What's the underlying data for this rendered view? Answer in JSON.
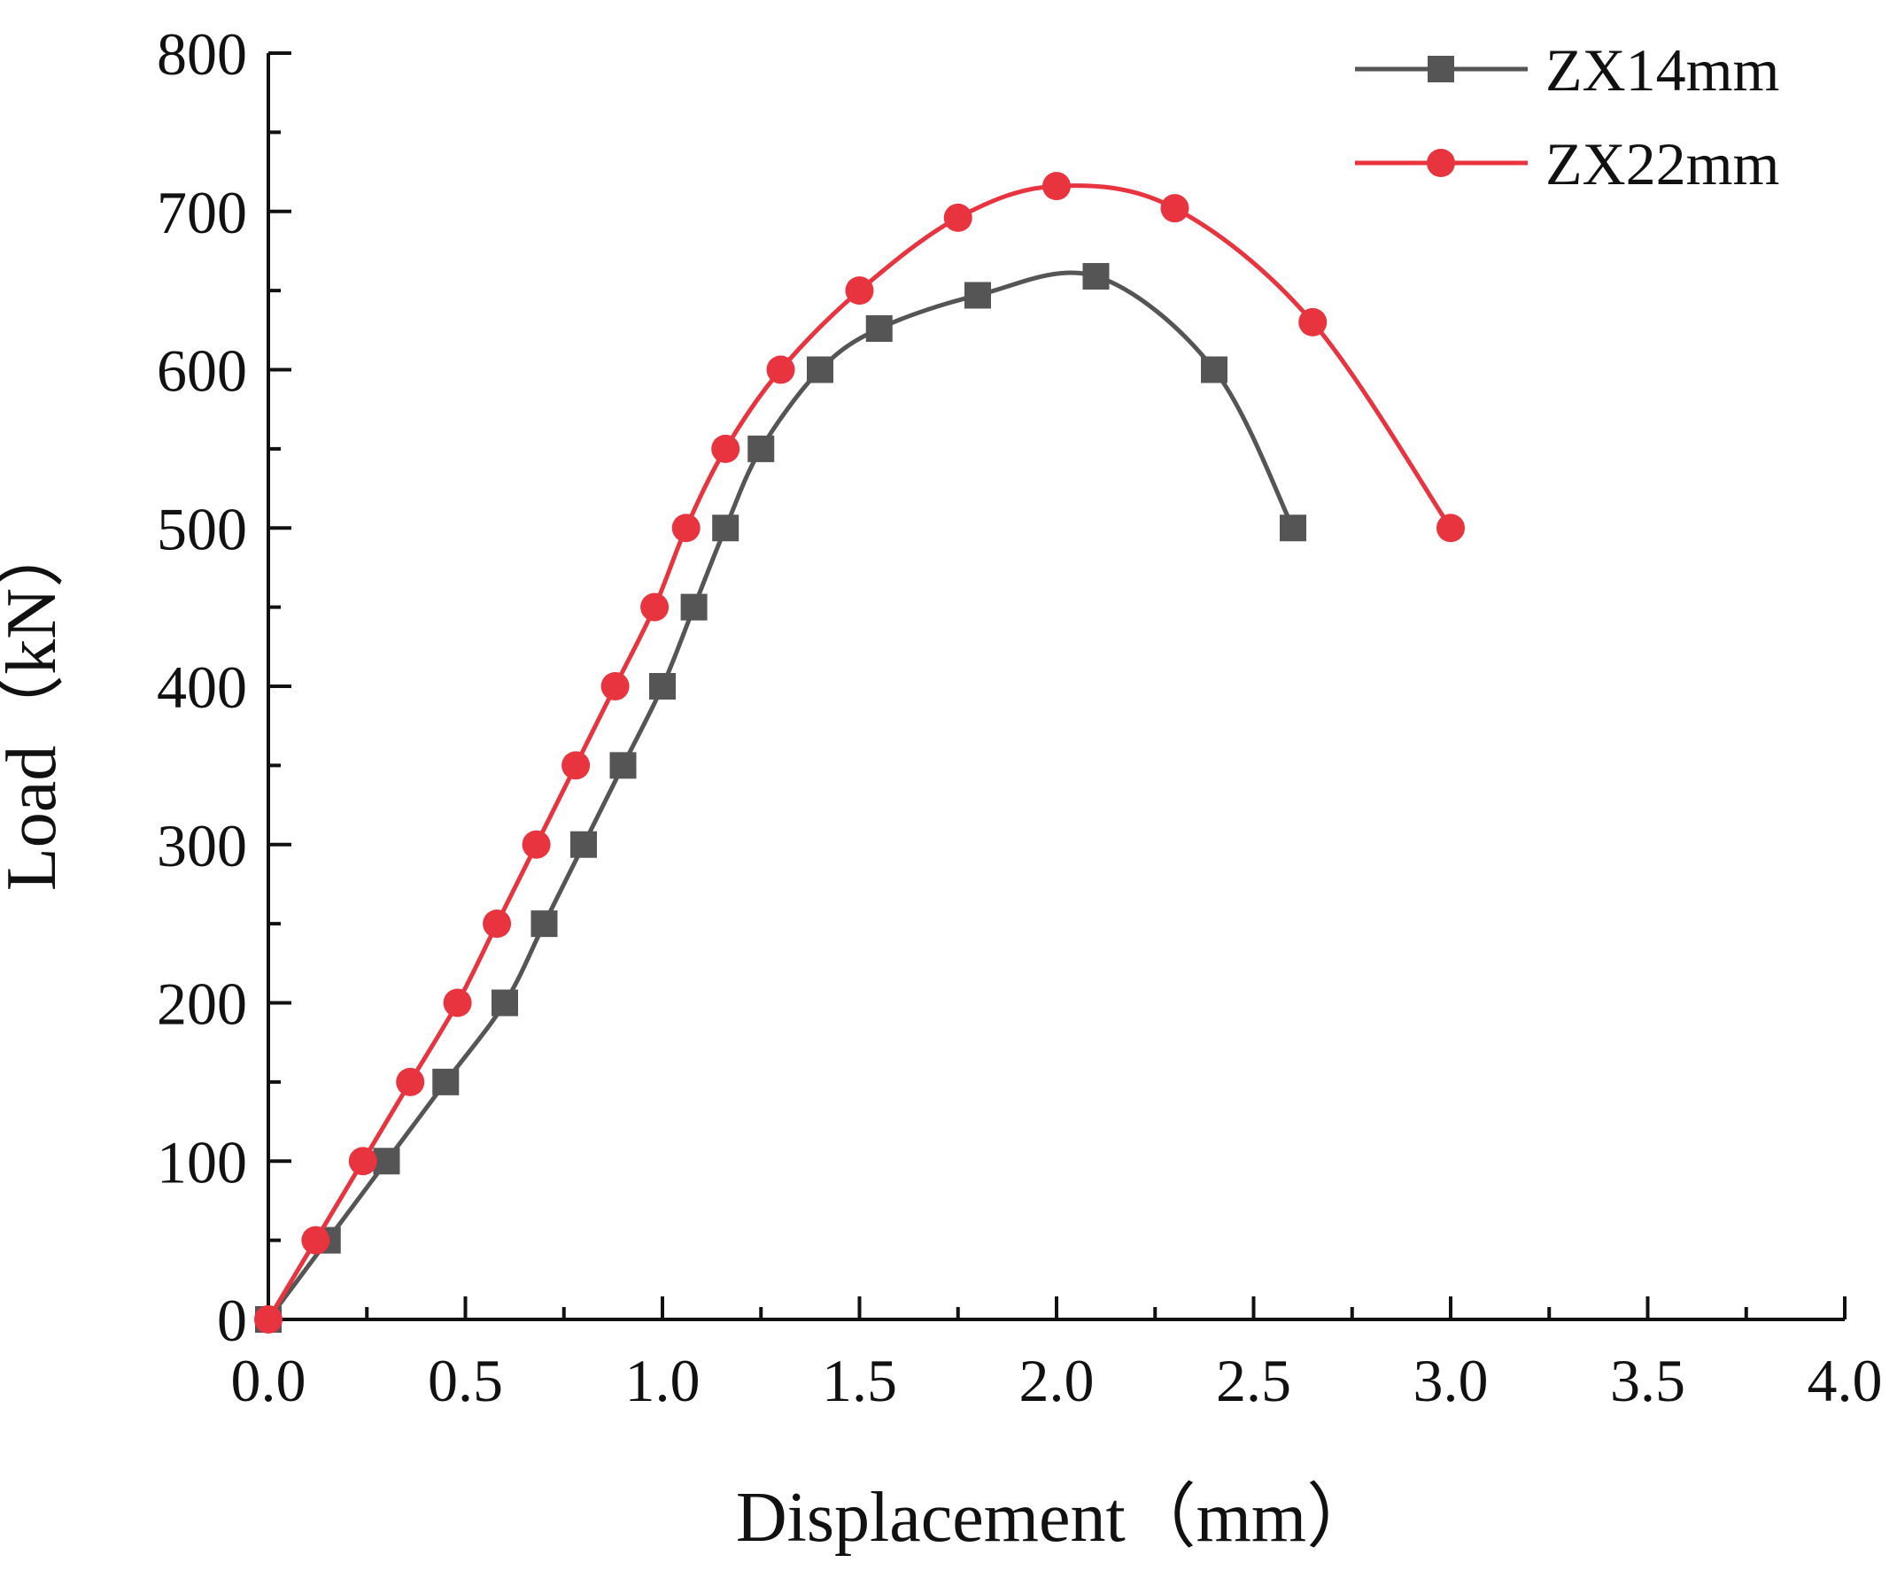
{
  "chart_data": {
    "type": "line",
    "title": "",
    "xlabel": "Displacement（mm）",
    "ylabel": "Load（kN）",
    "xlim": [
      0,
      4.0
    ],
    "ylim": [
      0,
      800
    ],
    "x_ticks": [
      "0.0",
      "0.5",
      "1.0",
      "1.5",
      "2.0",
      "2.5",
      "3.0",
      "3.5",
      "4.0"
    ],
    "y_ticks": [
      "0",
      "100",
      "200",
      "300",
      "400",
      "500",
      "600",
      "700",
      "800"
    ],
    "legend_position": "top-right",
    "grid": false,
    "series": [
      {
        "name": "ZX14mm",
        "color": "#555555",
        "marker": "square",
        "points": [
          [
            0.0,
            0
          ],
          [
            0.15,
            50
          ],
          [
            0.3,
            100
          ],
          [
            0.45,
            150
          ],
          [
            0.6,
            200
          ],
          [
            0.7,
            250
          ],
          [
            0.8,
            300
          ],
          [
            0.9,
            350
          ],
          [
            1.0,
            400
          ],
          [
            1.08,
            450
          ],
          [
            1.16,
            500
          ],
          [
            1.25,
            550
          ],
          [
            1.4,
            600
          ],
          [
            1.55,
            626
          ],
          [
            1.8,
            647
          ],
          [
            2.1,
            659
          ],
          [
            2.4,
            600
          ],
          [
            2.6,
            500
          ]
        ]
      },
      {
        "name": "ZX22mm",
        "color": "#e8343f",
        "marker": "circle",
        "points": [
          [
            0.0,
            0
          ],
          [
            0.12,
            50
          ],
          [
            0.24,
            100
          ],
          [
            0.36,
            150
          ],
          [
            0.48,
            200
          ],
          [
            0.58,
            250
          ],
          [
            0.68,
            300
          ],
          [
            0.78,
            350
          ],
          [
            0.88,
            400
          ],
          [
            0.98,
            450
          ],
          [
            1.06,
            500
          ],
          [
            1.16,
            550
          ],
          [
            1.3,
            600
          ],
          [
            1.5,
            650
          ],
          [
            1.75,
            696
          ],
          [
            2.0,
            716
          ],
          [
            2.3,
            702
          ],
          [
            2.65,
            630
          ],
          [
            3.0,
            500
          ]
        ]
      }
    ]
  }
}
